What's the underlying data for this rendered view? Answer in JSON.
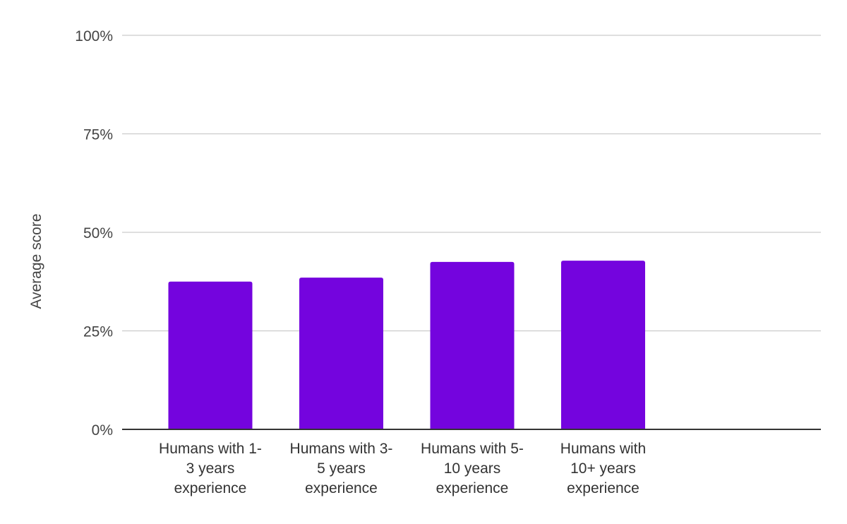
{
  "chart_data": {
    "type": "bar",
    "title": "",
    "xlabel": "",
    "ylabel": "Average score",
    "ylim": [
      0,
      100
    ],
    "yticks": [
      "0%",
      "25%",
      "50%",
      "75%",
      "100%"
    ],
    "grid": true,
    "categories": [
      [
        "Humans with 1-",
        "3 years",
        "experience"
      ],
      [
        "Humans with 3-",
        "5 years",
        "experience"
      ],
      [
        "Humans with 5-",
        "10 years",
        "experience"
      ],
      [
        "Humans with",
        "10+ years",
        "experience"
      ]
    ],
    "values": [
      37.5,
      38.5,
      42.5,
      42.8
    ],
    "color": "#7404de"
  }
}
